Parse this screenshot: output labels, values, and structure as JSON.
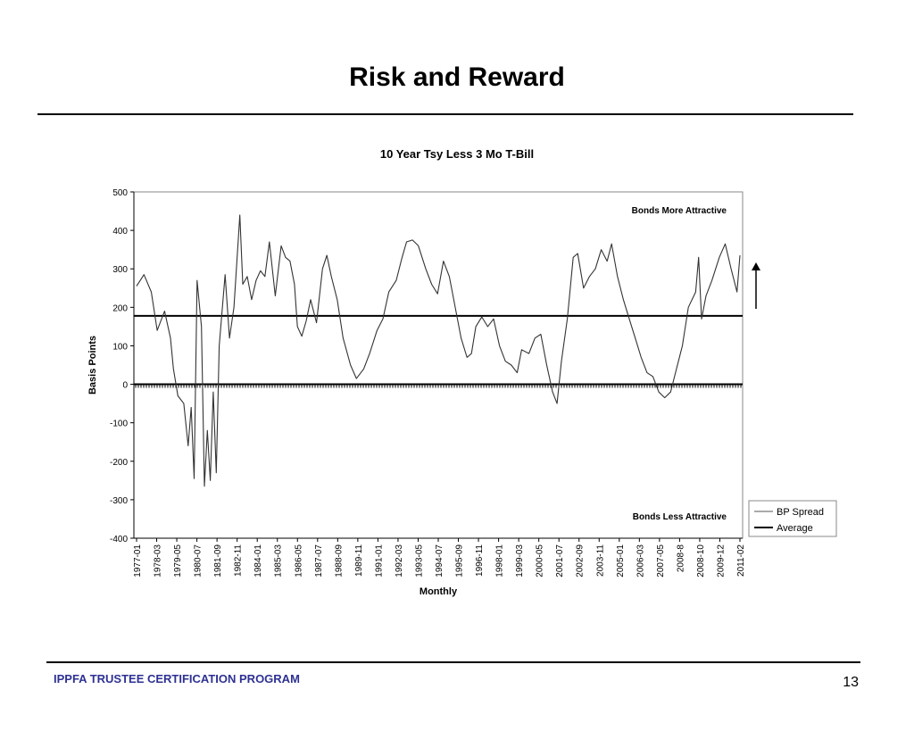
{
  "slide": {
    "title": "Risk and Reward",
    "footer_program": "IPPFA TRUSTEE CERTIFICATION PROGRAM",
    "page_number": "13"
  },
  "chart_data": {
    "type": "line",
    "title": "10 Year Tsy Less 3 Mo T-Bill",
    "xlabel": "Monthly",
    "ylabel": "Basis Points",
    "ylim": [
      -400,
      500
    ],
    "yticks": [
      500,
      400,
      300,
      200,
      100,
      0,
      -100,
      -200,
      -300,
      -400
    ],
    "x_tick_labels": [
      "1977-01",
      "1978-03",
      "1979-05",
      "1980-07",
      "1981-09",
      "1982-11",
      "1984-01",
      "1985-03",
      "1986-05",
      "1987-07",
      "1988-09",
      "1989-11",
      "1991-01",
      "1992-03",
      "1993-05",
      "1994-07",
      "1995-09",
      "1996-11",
      "1998-01",
      "1999-03",
      "2000-05",
      "2001-07",
      "2002-09",
      "2003-11",
      "2005-01",
      "2006-03",
      "2007-05",
      "2008-8",
      "2008-10",
      "2009-12",
      "2011-02"
    ],
    "annotations": {
      "upper": "Bonds More Attractive",
      "lower": "Bonds Less Attractive"
    },
    "legend_position": "bottom-right",
    "average_value": 178,
    "series": [
      {
        "name": "BP Spread",
        "color": "#333333",
        "points": [
          [
            "1977-01",
            255
          ],
          [
            "1977-06",
            285
          ],
          [
            "1977-11",
            240
          ],
          [
            "1978-03",
            140
          ],
          [
            "1978-08",
            190
          ],
          [
            "1978-12",
            120
          ],
          [
            "1979-02",
            40
          ],
          [
            "1979-05",
            -30
          ],
          [
            "1979-09",
            -50
          ],
          [
            "1979-12",
            -160
          ],
          [
            "1980-02",
            -60
          ],
          [
            "1980-04",
            -245
          ],
          [
            "1980-06",
            270
          ],
          [
            "1980-09",
            150
          ],
          [
            "1980-11",
            -265
          ],
          [
            "1981-01",
            -120
          ],
          [
            "1981-03",
            -250
          ],
          [
            "1981-05",
            -20
          ],
          [
            "1981-07",
            -230
          ],
          [
            "1981-09",
            100
          ],
          [
            "1982-01",
            285
          ],
          [
            "1982-04",
            120
          ],
          [
            "1982-07",
            200
          ],
          [
            "1982-11",
            440
          ],
          [
            "1983-01",
            260
          ],
          [
            "1983-04",
            280
          ],
          [
            "1983-07",
            220
          ],
          [
            "1983-10",
            270
          ],
          [
            "1984-01",
            295
          ],
          [
            "1984-04",
            280
          ],
          [
            "1984-07",
            370
          ],
          [
            "1984-11",
            230
          ],
          [
            "1985-03",
            360
          ],
          [
            "1985-06",
            330
          ],
          [
            "1985-09",
            320
          ],
          [
            "1985-12",
            260
          ],
          [
            "1986-02",
            150
          ],
          [
            "1986-05",
            125
          ],
          [
            "1986-08",
            165
          ],
          [
            "1986-11",
            220
          ],
          [
            "1987-03",
            160
          ],
          [
            "1987-07",
            300
          ],
          [
            "1987-10",
            335
          ],
          [
            "1988-01",
            280
          ],
          [
            "1988-05",
            220
          ],
          [
            "1988-09",
            120
          ],
          [
            "1989-02",
            50
          ],
          [
            "1989-06",
            15
          ],
          [
            "1989-11",
            40
          ],
          [
            "1990-03",
            80
          ],
          [
            "1990-08",
            140
          ],
          [
            "1990-12",
            170
          ],
          [
            "1991-04",
            240
          ],
          [
            "1991-09",
            270
          ],
          [
            "1992-01",
            330
          ],
          [
            "1992-04",
            370
          ],
          [
            "1992-08",
            375
          ],
          [
            "1992-12",
            360
          ],
          [
            "1993-05",
            300
          ],
          [
            "1993-09",
            260
          ],
          [
            "1994-01",
            235
          ],
          [
            "1994-05",
            320
          ],
          [
            "1994-09",
            280
          ],
          [
            "1995-01",
            200
          ],
          [
            "1995-05",
            120
          ],
          [
            "1995-09",
            70
          ],
          [
            "1995-12",
            80
          ],
          [
            "1996-03",
            150
          ],
          [
            "1996-07",
            175
          ],
          [
            "1996-11",
            150
          ],
          [
            "1997-03",
            170
          ],
          [
            "1997-07",
            100
          ],
          [
            "1997-11",
            60
          ],
          [
            "1998-03",
            50
          ],
          [
            "1998-07",
            30
          ],
          [
            "1998-10",
            90
          ],
          [
            "1999-03",
            80
          ],
          [
            "1999-07",
            120
          ],
          [
            "1999-11",
            130
          ],
          [
            "2000-03",
            50
          ],
          [
            "2000-07",
            -20
          ],
          [
            "2000-10",
            -50
          ],
          [
            "2001-01",
            60
          ],
          [
            "2001-05",
            170
          ],
          [
            "2001-09",
            330
          ],
          [
            "2001-12",
            340
          ],
          [
            "2002-04",
            250
          ],
          [
            "2002-08",
            280
          ],
          [
            "2002-12",
            300
          ],
          [
            "2003-04",
            350
          ],
          [
            "2003-08",
            320
          ],
          [
            "2003-11",
            365
          ],
          [
            "2004-03",
            280
          ],
          [
            "2004-07",
            220
          ],
          [
            "2004-11",
            170
          ],
          [
            "2005-03",
            120
          ],
          [
            "2005-07",
            70
          ],
          [
            "2005-11",
            30
          ],
          [
            "2006-03",
            20
          ],
          [
            "2006-07",
            -20
          ],
          [
            "2006-11",
            -35
          ],
          [
            "2007-03",
            -20
          ],
          [
            "2007-07",
            40
          ],
          [
            "2007-11",
            100
          ],
          [
            "2008-03",
            200
          ],
          [
            "2008-8",
            240
          ],
          [
            "2008-10",
            330
          ],
          [
            "2008-12",
            170
          ],
          [
            "2009-03",
            230
          ],
          [
            "2009-07",
            270
          ],
          [
            "2009-12",
            330
          ],
          [
            "2010-04",
            365
          ],
          [
            "2010-08",
            300
          ],
          [
            "2010-12",
            240
          ],
          [
            "2011-02",
            335
          ]
        ]
      },
      {
        "name": "Average",
        "color": "#000000",
        "constant": 178
      }
    ],
    "grid": false,
    "zero_line_ticks": true
  }
}
